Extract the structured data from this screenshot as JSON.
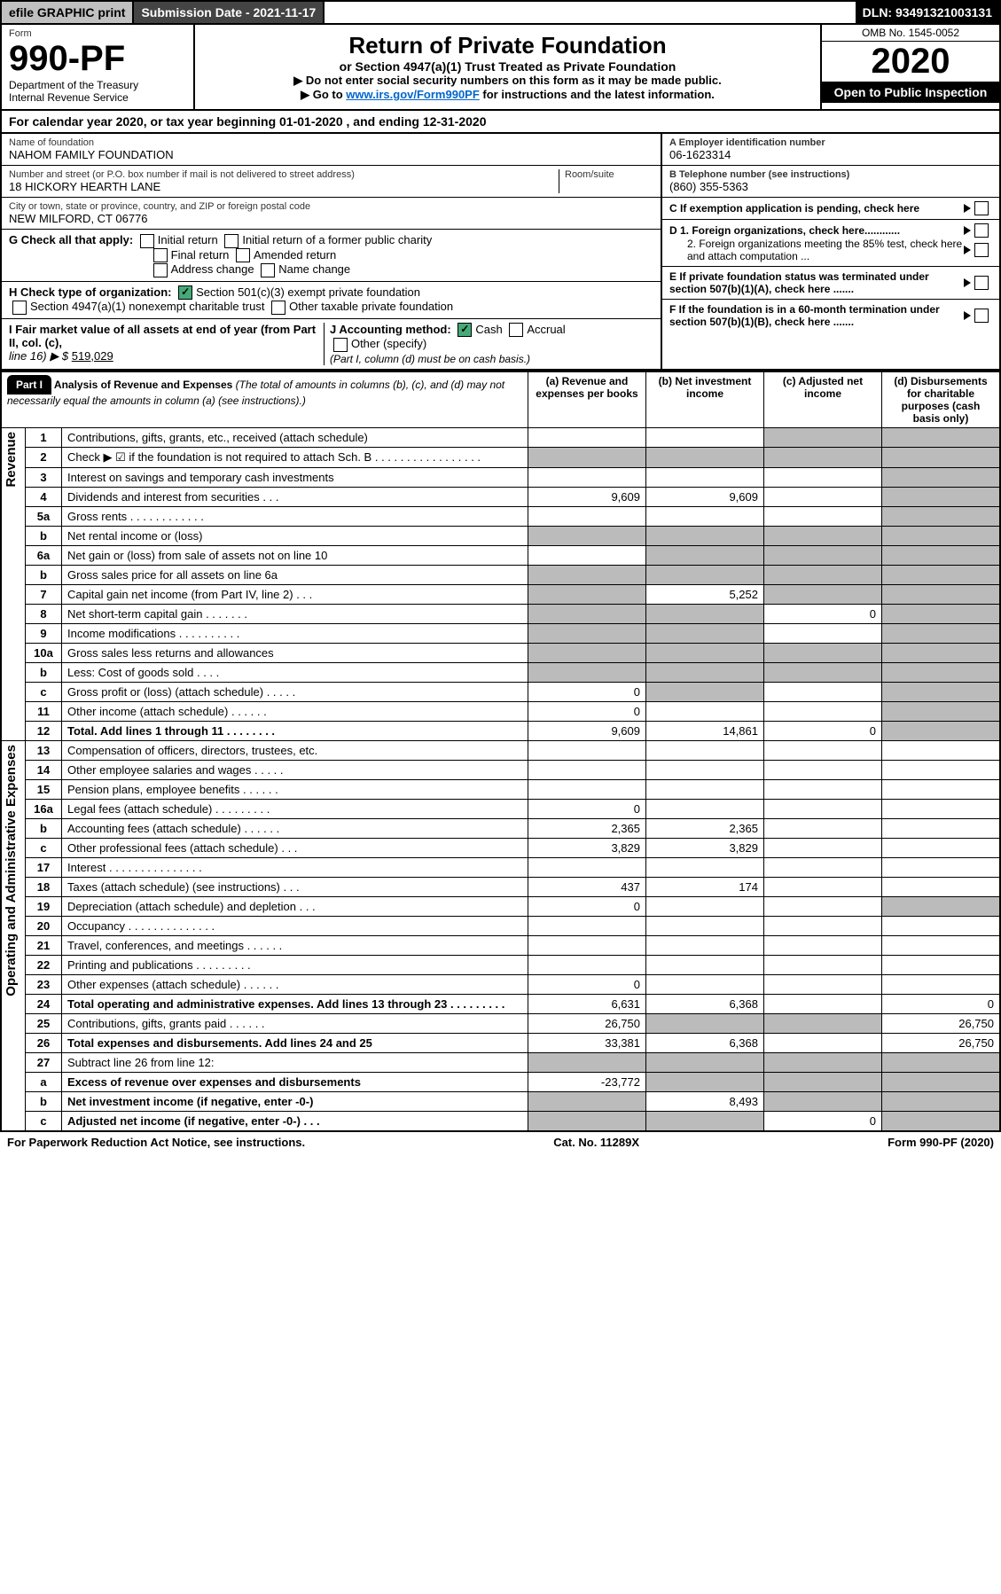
{
  "topbar": {
    "efile": "efile GRAPHIC print",
    "submission_label": "Submission Date - ",
    "submission_date": "2021-11-17",
    "dln_label": "DLN: ",
    "dln": "93491321003131"
  },
  "header": {
    "form_word": "Form",
    "form_no": "990-PF",
    "dept": "Department of the Treasury",
    "irs": "Internal Revenue Service",
    "title": "Return of Private Foundation",
    "subtitle": "or Section 4947(a)(1) Trust Treated as Private Foundation",
    "note1": "▶ Do not enter social security numbers on this form as it may be made public.",
    "note2_pre": "▶ Go to ",
    "note2_link": "www.irs.gov/Form990PF",
    "note2_post": " for instructions and the latest information.",
    "omb": "OMB No. 1545-0052",
    "year": "2020",
    "open": "Open to Public Inspection"
  },
  "period": {
    "text_pre": "For calendar year 2020, or tax year beginning ",
    "begin": "01-01-2020",
    "mid": " , and ending ",
    "end": "12-31-2020"
  },
  "entity": {
    "name_label": "Name of foundation",
    "name": "NAHOM FAMILY FOUNDATION",
    "addr_label": "Number and street (or P.O. box number if mail is not delivered to street address)",
    "addr": "18 HICKORY HEARTH LANE",
    "room_label": "Room/suite",
    "city_label": "City or town, state or province, country, and ZIP or foreign postal code",
    "city": "NEW MILFORD, CT  06776",
    "ein_label": "A Employer identification number",
    "ein": "06-1623314",
    "phone_label": "B Telephone number (see instructions)",
    "phone": "(860) 355-5363",
    "c_label": "C If exemption application is pending, check here",
    "d1": "D 1. Foreign organizations, check here............",
    "d2": "2. Foreign organizations meeting the 85% test, check here and attach computation ...",
    "e": "E If private foundation status was terminated under section 507(b)(1)(A), check here .......",
    "f": "F If the foundation is in a 60-month termination under section 507(b)(1)(B), check here .......",
    "g_label": "G Check all that apply:",
    "g_opts": [
      "Initial return",
      "Initial return of a former public charity",
      "Final return",
      "Amended return",
      "Address change",
      "Name change"
    ],
    "h_label": "H Check type of organization:",
    "h_opt1": "Section 501(c)(3) exempt private foundation",
    "h_opt2": "Section 4947(a)(1) nonexempt charitable trust",
    "h_opt3": "Other taxable private foundation",
    "i_label": "I Fair market value of all assets at end of year (from Part II, col. (c),",
    "i_line": "line 16) ▶ $",
    "i_value": "519,029",
    "j_label": "J Accounting method:",
    "j_cash": "Cash",
    "j_acc": "Accrual",
    "j_other": "Other (specify)",
    "j_note": "(Part I, column (d) must be on cash basis.)"
  },
  "part1": {
    "label": "Part I",
    "heading": "Analysis of Revenue and Expenses",
    "heading_note": " (The total of amounts in columns (b), (c), and (d) may not necessarily equal the amounts in column (a) (see instructions).)",
    "col_a": "(a) Revenue and expenses per books",
    "col_b": "(b) Net investment income",
    "col_c": "(c) Adjusted net income",
    "col_d": "(d) Disbursements for charitable purposes (cash basis only)",
    "side_rev": "Revenue",
    "side_exp": "Operating and Administrative Expenses"
  },
  "rows": [
    {
      "n": "1",
      "desc": "Contributions, gifts, grants, etc., received (attach schedule)",
      "a": "",
      "b": "",
      "c": "g",
      "d": "g"
    },
    {
      "n": "2",
      "desc": "Check ▶ ☑ if the foundation is not required to attach Sch. B  . . . . . . . . . . . . . . . . .",
      "a": "g",
      "b": "g",
      "c": "g",
      "d": "g"
    },
    {
      "n": "3",
      "desc": "Interest on savings and temporary cash investments",
      "a": "",
      "b": "",
      "c": "",
      "d": "g"
    },
    {
      "n": "4",
      "desc": "Dividends and interest from securities  . . .",
      "a": "9,609",
      "b": "9,609",
      "c": "",
      "d": "g"
    },
    {
      "n": "5a",
      "desc": "Gross rents  . . . . . . . . . . . .",
      "a": "",
      "b": "",
      "c": "",
      "d": "g"
    },
    {
      "n": "b",
      "desc": "Net rental income or (loss)",
      "a": "g",
      "b": "g",
      "c": "g",
      "d": "g"
    },
    {
      "n": "6a",
      "desc": "Net gain or (loss) from sale of assets not on line 10",
      "a": "",
      "b": "g",
      "c": "g",
      "d": "g"
    },
    {
      "n": "b",
      "desc": "Gross sales price for all assets on line 6a",
      "a": "g",
      "b": "g",
      "c": "g",
      "d": "g"
    },
    {
      "n": "7",
      "desc": "Capital gain net income (from Part IV, line 2)  . . .",
      "a": "g",
      "b": "5,252",
      "c": "g",
      "d": "g"
    },
    {
      "n": "8",
      "desc": "Net short-term capital gain  . . . . . . .",
      "a": "g",
      "b": "g",
      "c": "0",
      "d": "g"
    },
    {
      "n": "9",
      "desc": "Income modifications . . . . . . . . . .",
      "a": "g",
      "b": "g",
      "c": "",
      "d": "g"
    },
    {
      "n": "10a",
      "desc": "Gross sales less returns and allowances",
      "a": "g",
      "b": "g",
      "c": "g",
      "d": "g"
    },
    {
      "n": "b",
      "desc": "Less: Cost of goods sold  . . . .",
      "a": "g",
      "b": "g",
      "c": "g",
      "d": "g"
    },
    {
      "n": "c",
      "desc": "Gross profit or (loss) (attach schedule)  . . . . .",
      "a": "0",
      "b": "g",
      "c": "",
      "d": "g"
    },
    {
      "n": "11",
      "desc": "Other income (attach schedule)  . . . . . .",
      "a": "0",
      "b": "",
      "c": "",
      "d": "g"
    },
    {
      "n": "12",
      "desc": "Total. Add lines 1 through 11  . . . . . . . .",
      "a": "9,609",
      "b": "14,861",
      "c": "0",
      "d": "g",
      "bold": true
    },
    {
      "n": "13",
      "desc": "Compensation of officers, directors, trustees, etc.",
      "a": "",
      "b": "",
      "c": "",
      "d": ""
    },
    {
      "n": "14",
      "desc": "Other employee salaries and wages  . . . . .",
      "a": "",
      "b": "",
      "c": "",
      "d": ""
    },
    {
      "n": "15",
      "desc": "Pension plans, employee benefits  . . . . . .",
      "a": "",
      "b": "",
      "c": "",
      "d": ""
    },
    {
      "n": "16a",
      "desc": "Legal fees (attach schedule) . . . . . . . . .",
      "a": "0",
      "b": "",
      "c": "",
      "d": ""
    },
    {
      "n": "b",
      "desc": "Accounting fees (attach schedule) . . . . . .",
      "a": "2,365",
      "b": "2,365",
      "c": "",
      "d": ""
    },
    {
      "n": "c",
      "desc": "Other professional fees (attach schedule)  . . .",
      "a": "3,829",
      "b": "3,829",
      "c": "",
      "d": ""
    },
    {
      "n": "17",
      "desc": "Interest . . . . . . . . . . . . . . .",
      "a": "",
      "b": "",
      "c": "",
      "d": ""
    },
    {
      "n": "18",
      "desc": "Taxes (attach schedule) (see instructions)  . . .",
      "a": "437",
      "b": "174",
      "c": "",
      "d": ""
    },
    {
      "n": "19",
      "desc": "Depreciation (attach schedule) and depletion  . . .",
      "a": "0",
      "b": "",
      "c": "",
      "d": "g"
    },
    {
      "n": "20",
      "desc": "Occupancy . . . . . . . . . . . . . .",
      "a": "",
      "b": "",
      "c": "",
      "d": ""
    },
    {
      "n": "21",
      "desc": "Travel, conferences, and meetings . . . . . .",
      "a": "",
      "b": "",
      "c": "",
      "d": ""
    },
    {
      "n": "22",
      "desc": "Printing and publications . . . . . . . . .",
      "a": "",
      "b": "",
      "c": "",
      "d": ""
    },
    {
      "n": "23",
      "desc": "Other expenses (attach schedule)  . . . . . .",
      "a": "0",
      "b": "",
      "c": "",
      "d": ""
    },
    {
      "n": "24",
      "desc": "Total operating and administrative expenses. Add lines 13 through 23  . . . . . . . . .",
      "a": "6,631",
      "b": "6,368",
      "c": "",
      "d": "0",
      "bold": true
    },
    {
      "n": "25",
      "desc": "Contributions, gifts, grants paid  . . . . . .",
      "a": "26,750",
      "b": "g",
      "c": "g",
      "d": "26,750"
    },
    {
      "n": "26",
      "desc": "Total expenses and disbursements. Add lines 24 and 25",
      "a": "33,381",
      "b": "6,368",
      "c": "",
      "d": "26,750",
      "bold": true
    },
    {
      "n": "27",
      "desc": "Subtract line 26 from line 12:",
      "a": "g",
      "b": "g",
      "c": "g",
      "d": "g"
    },
    {
      "n": "a",
      "desc": "Excess of revenue over expenses and disbursements",
      "a": "-23,772",
      "b": "g",
      "c": "g",
      "d": "g",
      "bold": true
    },
    {
      "n": "b",
      "desc": "Net investment income (if negative, enter -0-)",
      "a": "g",
      "b": "8,493",
      "c": "g",
      "d": "g",
      "bold": true
    },
    {
      "n": "c",
      "desc": "Adjusted net income (if negative, enter -0-)  . . .",
      "a": "g",
      "b": "g",
      "c": "0",
      "d": "g",
      "bold": true
    }
  ],
  "footer": {
    "left": "For Paperwork Reduction Act Notice, see instructions.",
    "mid": "Cat. No. 11289X",
    "right": "Form 990-PF (2020)"
  }
}
